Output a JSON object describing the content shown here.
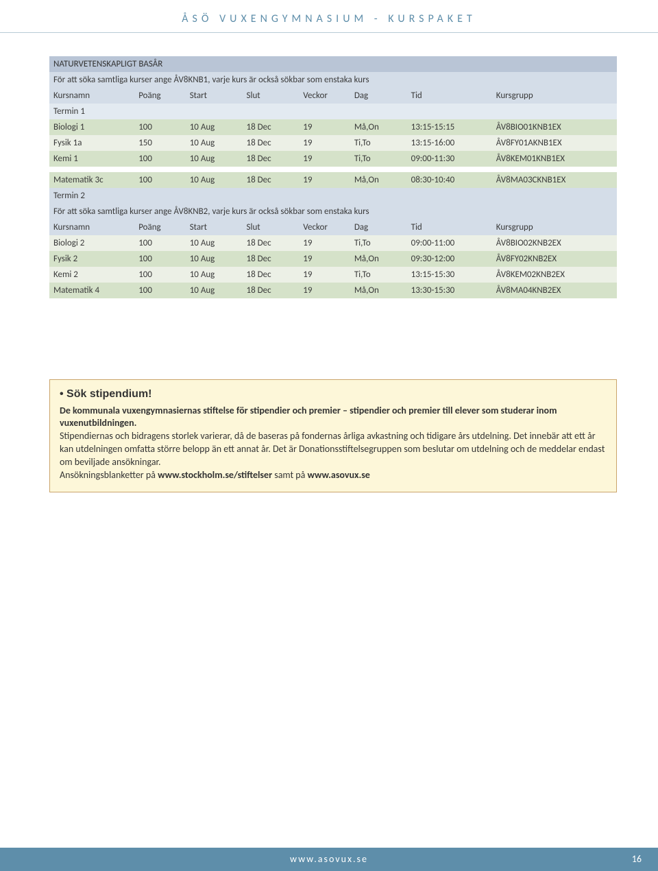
{
  "header": {
    "title": "ÅSÖ VUXENGYMNASIUM - KURSPAKET"
  },
  "table": {
    "title": "NATURVETENSKAPLIGT BASÅR",
    "note1": "För att söka samtliga kurser ange ÅV8KNB1, varje kurs är också sökbar som enstaka kurs",
    "columns": [
      "Kursnamn",
      "Poäng",
      "Start",
      "Slut",
      "Veckor",
      "Dag",
      "Tid",
      "Kursgrupp"
    ],
    "term1_label": "Termin 1",
    "term1_rows": [
      [
        "Biologi 1",
        "100",
        "10 Aug",
        "18 Dec",
        "19",
        "Må,On",
        "13:15-15:15",
        "ÅV8BIO01KNB1EX"
      ],
      [
        "Fysik 1a",
        "150",
        "10 Aug",
        "18 Dec",
        "19",
        "Ti,To",
        "13:15-16:00",
        "ÅV8FY01AKNB1EX"
      ],
      [
        "Kemi 1",
        "100",
        "10 Aug",
        "18 Dec",
        "19",
        "Ti,To",
        "09:00-11:30",
        "ÅV8KEM01KNB1EX"
      ]
    ],
    "mid_row": [
      "Matematik 3c",
      "100",
      "10 Aug",
      "18 Dec",
      "19",
      "Må,On",
      "08:30-10:40",
      "ÅV8MA03CKNB1EX"
    ],
    "term2_label": "Termin 2",
    "note2": "För att söka samtliga kurser ange ÅV8KNB2, varje kurs är också sökbar som enstaka kurs",
    "term2_rows": [
      [
        "Biologi 2",
        "100",
        "10 Aug",
        "18 Dec",
        "19",
        "Ti,To",
        "09:00-11:00",
        "ÅV8BIO02KNB2EX"
      ],
      [
        "Fysik 2",
        "100",
        "10 Aug",
        "18 Dec",
        "19",
        "Må,On",
        "09:30-12:00",
        "ÅV8FY02KNB2EX"
      ],
      [
        "Kemi 2",
        "100",
        "10 Aug",
        "18 Dec",
        "19",
        "Ti,To",
        "13:15-15:30",
        "ÅV8KEM02KNB2EX"
      ],
      [
        "Matematik 4",
        "100",
        "10 Aug",
        "18 Dec",
        "19",
        "Må,On",
        "13:30-15:30",
        "ÅV8MA04KNB2EX"
      ]
    ]
  },
  "callout": {
    "title": "Sök stipendium!",
    "line1a": "De kommunala vuxengymnasiernas stiftelse för stipendier och premier – stipendier och premier till elever som studerar inom vuxenutbildningen.",
    "line2": "Stipendiernas och bidragens storlek varierar, då de baseras på fondernas årliga avkastning och tidigare års utdelning. Det innebär att ett år kan utdelningen omfatta större belopp än ett annat år. Det är Donationsstiftelsegruppen som beslutar om utdelning och de meddelar endast om beviljade ansökningar.",
    "line3_pre": "Ansökningsblanketter på ",
    "link1": "www.stockholm.se/stiftelser",
    "line3_mid": " samt på ",
    "link2": "www.asovux.se"
  },
  "footer": {
    "url": "www.asovux.se",
    "page": "16"
  },
  "colors": {
    "header_text": "#5e8eaa",
    "footer_bg": "#5e8eaa",
    "row_green": "#d5e2c9",
    "row_pale": "#ecf0e6",
    "hdr_dark": "#b9c5d6",
    "hdr_light": "#d4dde8",
    "callout_bg": "#fdf7d9",
    "callout_border": "#caa46a"
  }
}
